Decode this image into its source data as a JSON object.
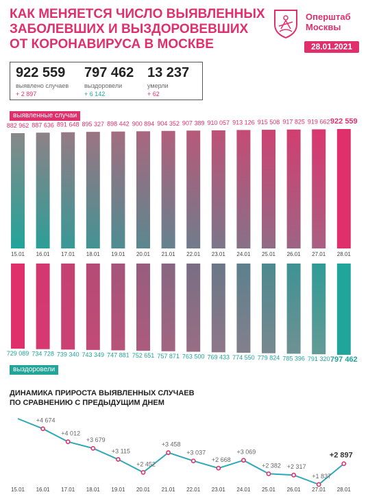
{
  "header": {
    "title_lines": [
      "КАК МЕНЯЕТСЯ ЧИСЛО ВЫЯВЛЕННЫХ",
      "ЗАБОЛЕВШИХ И ВЫЗДОРОВЕВШИХ",
      "ОТ КОРОНАВИРУСА В МОСКВЕ"
    ],
    "brand_line1": "Оперштаб",
    "brand_line2": "Москвы",
    "logo_icon": "moscow-coat-of-arms-icon",
    "date": "28.01.2021"
  },
  "stats": {
    "cases": {
      "value": "922 559",
      "label": "выявлено случаев",
      "delta": "+ 2 897"
    },
    "recovered": {
      "value": "797 462",
      "label": "выздоровели",
      "delta": "+ 6 142"
    },
    "deaths": {
      "value": "13 237",
      "label": "умерли",
      "delta": "+ 62"
    }
  },
  "colors": {
    "pink": "#e0306b",
    "teal": "#21a49a",
    "gray": "#888888"
  },
  "chart_data": [
    {
      "type": "bar",
      "title": "выявленные случаи",
      "categories": [
        "15.01",
        "16.01",
        "17.01",
        "18.01",
        "19.01",
        "20.01",
        "21.01",
        "22.01",
        "23.01",
        "24.01",
        "25.01",
        "26.01",
        "27.01",
        "28.01"
      ],
      "values": [
        882962,
        887636,
        891648,
        895327,
        898442,
        900894,
        904352,
        907389,
        910057,
        913126,
        915508,
        917825,
        919662,
        922559
      ],
      "value_labels": [
        "882 962",
        "887 636",
        "891 648",
        "895 327",
        "898 442",
        "900 894",
        "904 352",
        "907 389",
        "910 057",
        "913 126",
        "915 508",
        "917 825",
        "919 662",
        "922 559"
      ]
    },
    {
      "type": "bar",
      "title": "выздоровели",
      "categories": [
        "15.01",
        "16.01",
        "17.01",
        "18.01",
        "19.01",
        "20.01",
        "21.01",
        "22.01",
        "23.01",
        "24.01",
        "25.01",
        "26.01",
        "27.01",
        "28.01"
      ],
      "values": [
        729089,
        734728,
        739340,
        743349,
        747881,
        752651,
        757871,
        763500,
        769433,
        774550,
        779824,
        785396,
        791320,
        797462
      ],
      "value_labels": [
        "729 089",
        "734 728",
        "739 340",
        "743 349",
        "747 881",
        "752 651",
        "757 871",
        "763 500",
        "769 433",
        "774 550",
        "779 824",
        "785 396",
        "791 320",
        "797 462"
      ]
    },
    {
      "type": "line",
      "title_lines": [
        "ДИНАМИКА ПРИРОСТА ВЫЯВЛЕННЫХ СЛУЧАЕВ",
        "ПО СРАВНЕНИЮ С ПРЕДЫДУЩИМ ДНЕМ"
      ],
      "categories": [
        "15.01",
        "16.01",
        "17.01",
        "18.01",
        "19.01",
        "20.01",
        "21.01",
        "22.01",
        "23.01",
        "24.01",
        "25.01",
        "26.01",
        "27.01",
        "28.01"
      ],
      "values": [
        null,
        4674,
        4012,
        3679,
        3115,
        2452,
        3458,
        3037,
        2668,
        3069,
        2382,
        2317,
        1837,
        2897
      ],
      "value_labels": [
        "",
        "+4 674",
        "+4 012",
        "+3 679",
        "+3 115",
        "+2 452",
        "+3 458",
        "+3 037",
        "+2 668",
        "+3 069",
        "+2 382",
        "+2 317",
        "+1 837",
        "+2 897"
      ]
    }
  ]
}
